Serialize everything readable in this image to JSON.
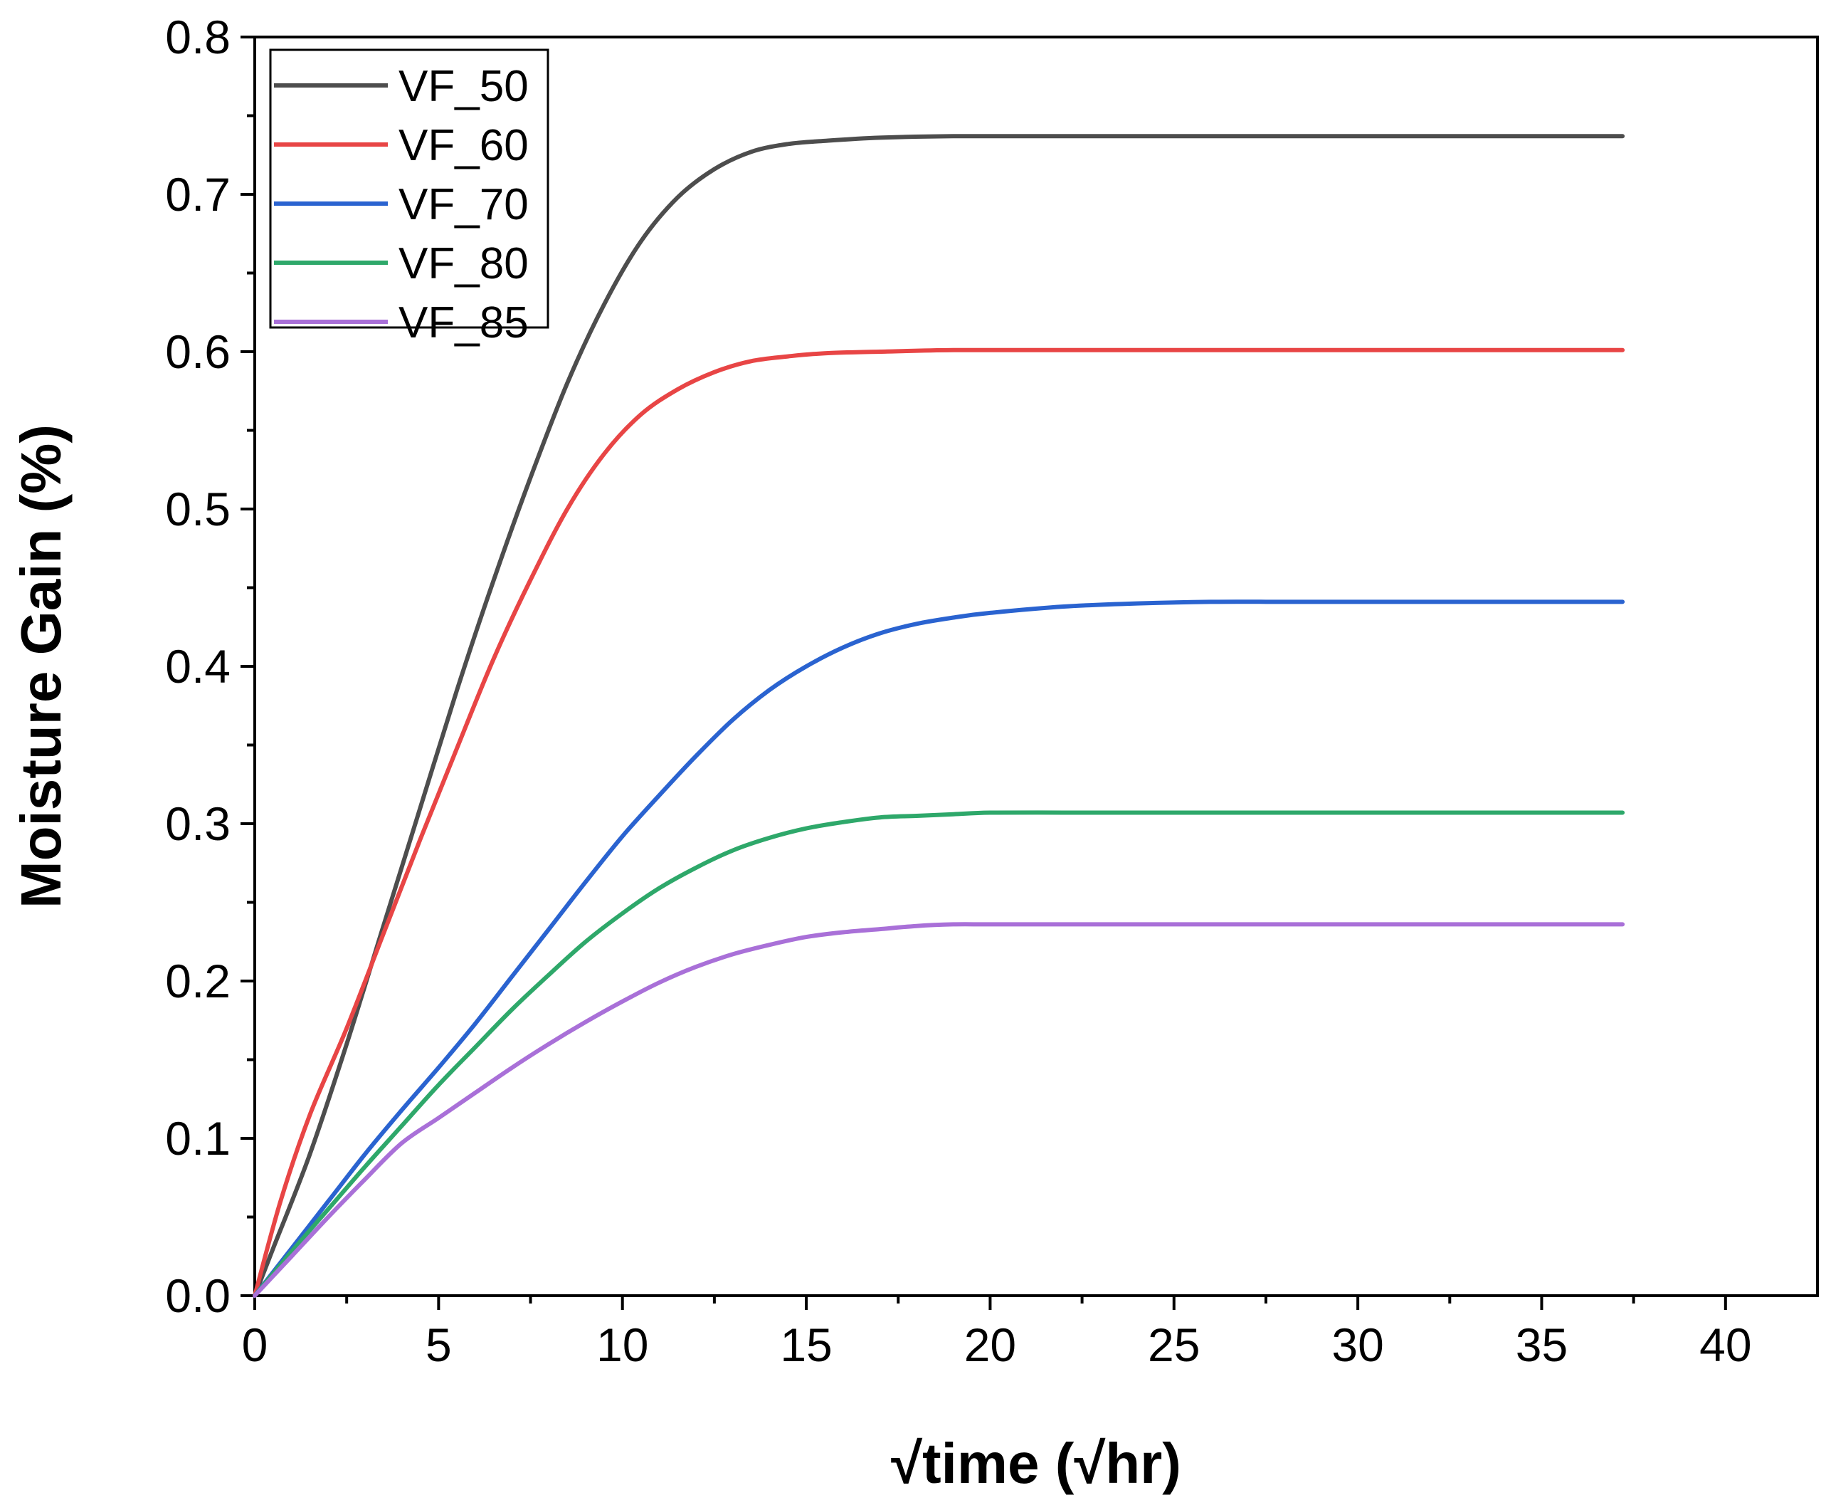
{
  "chart_data": {
    "type": "line",
    "title": "",
    "xlabel": "√time (√hr)",
    "ylabel": "Moisture Gain (%)",
    "xlim": [
      0,
      42.5
    ],
    "ylim": [
      0,
      0.8
    ],
    "x_ticks": [
      0,
      5,
      10,
      15,
      20,
      25,
      30,
      35,
      40
    ],
    "x_tick_labels": [
      "0",
      "5",
      "10",
      "15",
      "20",
      "25",
      "30",
      "35",
      "40"
    ],
    "y_ticks": [
      0.0,
      0.1,
      0.2,
      0.3,
      0.4,
      0.5,
      0.6,
      0.7,
      0.8
    ],
    "y_tick_labels": [
      "0.0",
      "0.1",
      "0.2",
      "0.3",
      "0.4",
      "0.5",
      "0.6",
      "0.7",
      "0.8"
    ],
    "grid": false,
    "legend_position": "top-left",
    "series": [
      {
        "name": "VF_50",
        "color": "#4d4d4d",
        "x": [
          0,
          0.5,
          1.5,
          2.5,
          3.5,
          4.5,
          5.5,
          6.5,
          7.5,
          8.5,
          9.5,
          10.5,
          11.5,
          12.5,
          13.5,
          14.5,
          15.5,
          17,
          19,
          22,
          26,
          30,
          37.2
        ],
        "y": [
          0,
          0.03,
          0.09,
          0.16,
          0.235,
          0.31,
          0.385,
          0.455,
          0.52,
          0.58,
          0.63,
          0.67,
          0.698,
          0.716,
          0.727,
          0.732,
          0.734,
          0.736,
          0.737,
          0.737,
          0.737,
          0.737,
          0.737
        ]
      },
      {
        "name": "VF_60",
        "color": "#e84545",
        "x": [
          0,
          0.7,
          1.5,
          2.5,
          3.5,
          4.5,
          5.5,
          6.5,
          7.5,
          8.5,
          9.5,
          10.5,
          11.5,
          12.5,
          13.5,
          14.5,
          15.5,
          17,
          19,
          22,
          26,
          30,
          37.2
        ],
        "y": [
          0,
          0.06,
          0.115,
          0.17,
          0.23,
          0.29,
          0.348,
          0.405,
          0.455,
          0.5,
          0.535,
          0.56,
          0.576,
          0.587,
          0.594,
          0.597,
          0.599,
          0.6,
          0.601,
          0.601,
          0.601,
          0.601,
          0.601
        ]
      },
      {
        "name": "VF_70",
        "color": "#2a63d0",
        "x": [
          0,
          1,
          2,
          3,
          4,
          5,
          6,
          7,
          8,
          9,
          10,
          11,
          12,
          13,
          14,
          15,
          16,
          17,
          18,
          19,
          20,
          22,
          24,
          26,
          28,
          30,
          37.2
        ],
        "y": [
          0,
          0.03,
          0.06,
          0.09,
          0.118,
          0.145,
          0.173,
          0.203,
          0.233,
          0.263,
          0.292,
          0.318,
          0.343,
          0.366,
          0.385,
          0.4,
          0.412,
          0.421,
          0.427,
          0.431,
          0.434,
          0.438,
          0.44,
          0.441,
          0.441,
          0.441,
          0.441
        ]
      },
      {
        "name": "VF_80",
        "color": "#2ea86a",
        "x": [
          0,
          1,
          2,
          3,
          4,
          5,
          6,
          7,
          8,
          9,
          10,
          11,
          12,
          13,
          14,
          15,
          16,
          17,
          18,
          19,
          20,
          22,
          24,
          26,
          30,
          37.2
        ],
        "y": [
          0,
          0.028,
          0.055,
          0.082,
          0.108,
          0.134,
          0.158,
          0.182,
          0.204,
          0.225,
          0.243,
          0.259,
          0.272,
          0.283,
          0.291,
          0.297,
          0.301,
          0.304,
          0.305,
          0.306,
          0.307,
          0.307,
          0.307,
          0.307,
          0.307,
          0.307
        ]
      },
      {
        "name": "VF_85",
        "color": "#a970d8",
        "x": [
          0,
          1,
          2,
          3,
          4,
          5,
          6,
          7,
          8,
          9,
          10,
          11,
          12,
          13,
          14,
          15,
          16,
          17,
          18,
          19,
          20,
          22,
          24,
          26,
          30,
          37.2
        ],
        "y": [
          0,
          0.025,
          0.05,
          0.074,
          0.097,
          0.113,
          0.129,
          0.145,
          0.16,
          0.174,
          0.187,
          0.199,
          0.209,
          0.217,
          0.223,
          0.228,
          0.231,
          0.233,
          0.235,
          0.236,
          0.236,
          0.236,
          0.236,
          0.236,
          0.236,
          0.236
        ]
      }
    ]
  }
}
